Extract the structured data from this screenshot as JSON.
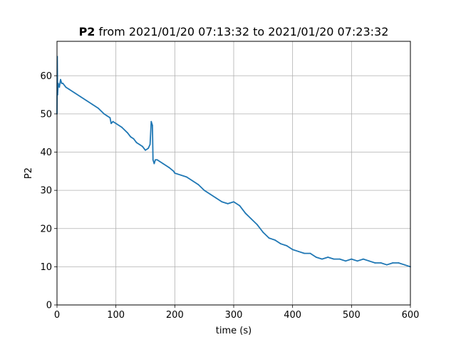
{
  "chart_data": {
    "type": "line",
    "title": {
      "bold": "P2",
      "rest": " from 2021/01/20 07:13:32 to 2021/01/20 07:23:32"
    },
    "xlabel": "time (s)",
    "ylabel": "P2",
    "xlim": [
      0,
      600
    ],
    "ylim": [
      0,
      69
    ],
    "xticks": [
      0,
      100,
      200,
      300,
      400,
      500,
      600
    ],
    "yticks": [
      0,
      10,
      20,
      30,
      40,
      50,
      60
    ],
    "grid": true,
    "series": [
      {
        "color": "#1f77b4",
        "x": [
          0,
          0.5,
          1,
          2,
          4,
          6,
          8,
          10,
          15,
          20,
          30,
          40,
          50,
          60,
          70,
          80,
          85,
          90,
          92,
          95,
          100,
          110,
          120,
          125,
          130,
          135,
          140,
          145,
          150,
          155,
          158,
          160,
          162,
          163,
          165,
          167,
          170,
          180,
          190,
          198,
          200,
          210,
          220,
          240,
          250,
          260,
          270,
          280,
          290,
          300,
          310,
          320,
          330,
          340,
          350,
          360,
          370,
          380,
          390,
          400,
          410,
          420,
          430,
          440,
          450,
          460,
          470,
          480,
          490,
          500,
          510,
          520,
          530,
          540,
          550,
          560,
          570,
          580,
          590,
          600
        ],
        "y": [
          50,
          65,
          55,
          58,
          57,
          59,
          58,
          58,
          57,
          56.5,
          55.5,
          54.5,
          53.5,
          52.5,
          51.5,
          50,
          49.5,
          49,
          47.5,
          48,
          47.5,
          46.5,
          45,
          44,
          43.5,
          42.5,
          42,
          41.5,
          40.5,
          41,
          42,
          48,
          47,
          38,
          37,
          38,
          38,
          37,
          36,
          35,
          34.5,
          34,
          33.5,
          31.5,
          30,
          29,
          28,
          27,
          26.5,
          27,
          26,
          24,
          22.5,
          21,
          19,
          17.5,
          17,
          16,
          15.5,
          14.5,
          14,
          13.5,
          13.5,
          12.5,
          12,
          12.5,
          12,
          12,
          11.5,
          12,
          11.5,
          12,
          11.5,
          11,
          11,
          10.5,
          11,
          11,
          10.5,
          10
        ]
      }
    ]
  }
}
